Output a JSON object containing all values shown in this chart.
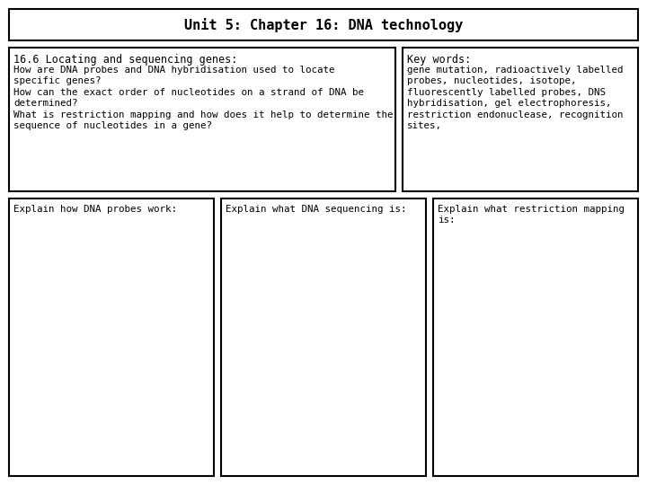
{
  "title": "Unit 5: Chapter 16: DNA technology",
  "title_fontsize": 11,
  "bg_color": "#ffffff",
  "border_color": "#000000",
  "top_left_heading": "16.6 Locating and sequencing genes:",
  "top_left_body": "How are DNA probes and DNA hybridisation used to locate\nspecific genes?\nHow can the exact order of nucleotides on a strand of DNA be\ndetermined?\nWhat is restriction mapping and how does it help to determine the\nsequence of nucleotides in a gene?",
  "top_right_heading": "Key words:",
  "top_right_body": "gene mutation, radioactively labelled\nprobes, nucleotides, isotope,\nfluorescently labelled probes, DNS\nhybridisation, gel electrophoresis,\nrestriction endonuclease, recognition\nsites,",
  "bottom_left_label": "Explain how DNA probes work:",
  "bottom_mid_label": "Explain what DNA sequencing is:",
  "bottom_right_label": "Explain what restriction mapping\nis:",
  "font_size_title": 11,
  "font_size_heading": 8.5,
  "font_size_body": 7.8,
  "font_size_label": 7.8,
  "lw": 1.5
}
